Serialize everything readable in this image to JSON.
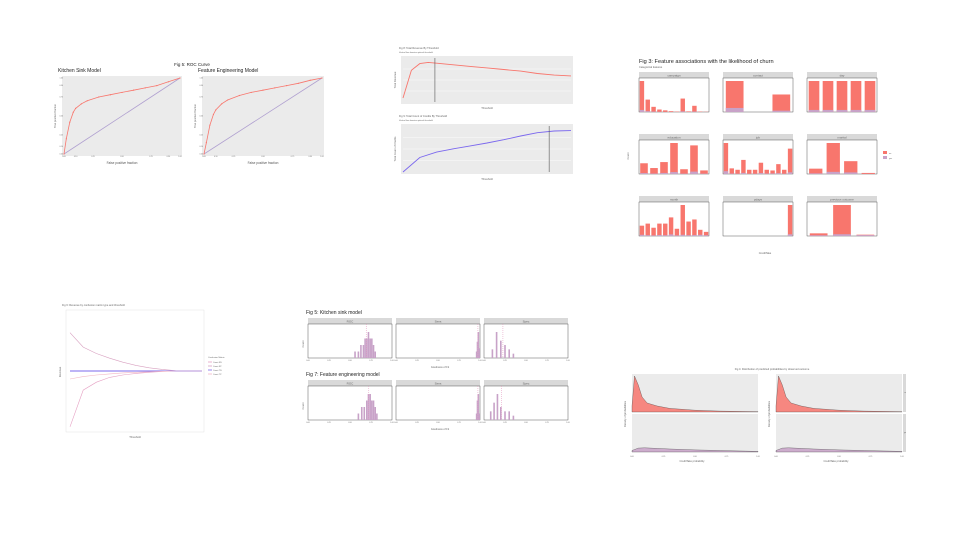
{
  "slide": {
    "background": "#ffffff"
  },
  "colors": {
    "salmon": "#f8766d",
    "lilac": "#c8a2c8",
    "purple": "#7b68ee",
    "pink": "#e6a1c4",
    "panel": "#ebebeb",
    "strip": "#d9d9d9",
    "diag": "#b0a0d0"
  },
  "fig5": {
    "title": "Fig 5: ROC Curve",
    "left_title": "Kitchen Sink Model",
    "right_title": "Feature Engineering Model",
    "xlabel": "False positive fraction",
    "ylabel": "True positive fraction",
    "xticks": [
      "0.00",
      "0.10",
      "0.25",
      "0.50",
      "0.75",
      "0.90",
      "1.00"
    ],
    "yticks": [
      "0.00",
      "0.10",
      "0.25",
      "0.50",
      "0.75",
      "0.90",
      "1.00"
    ]
  },
  "fig8": {
    "title": "Fig 8: Total Revenue By Threshold",
    "subtitle": "Vertical line denotes optimal threshold",
    "xlabel": "Threshold",
    "ylabel": "Total Revenue"
  },
  "fig9": {
    "title": "Fig 9: Total Count of Credits By Threshold",
    "subtitle": "Vertical line denotes optimal threshold",
    "xlabel": "Threshold",
    "ylabel": "Total Count of Credits"
  },
  "fig3": {
    "title": "Fig 3: Feature associations with the likelihood of churn",
    "subtitle": "Categorical features",
    "panels": [
      "campaign",
      "contact",
      "day",
      "education",
      "job",
      "marital",
      "month",
      "pdays",
      "previous outcome"
    ],
    "xlabel": "CreditTake",
    "ylabel": "Count",
    "legend": [
      "no",
      "yes"
    ]
  },
  "fig6": {
    "title": "Fig 6: Revenue by confusion matrix type and threshold",
    "xlabel": "Threshold",
    "ylabel": "Revenue",
    "legend_title": "Confusion Matrix",
    "legend": [
      "Count FN",
      "Count FP",
      "Count TN",
      "Count TP"
    ]
  },
  "fig5b": {
    "title": "Fig 5: Kitchen sink model",
    "strips": [
      "ROC",
      "Sens",
      "Spec"
    ],
    "xlabel": "Goodness of Fit",
    "ylabel": "Count",
    "xticks": [
      "0.00",
      "0.25",
      "0.50",
      "0.75",
      "1.00"
    ]
  },
  "fig7": {
    "title": "Fig 7: Feature engineering model",
    "strips": [
      "ROC",
      "Sens",
      "Spec"
    ],
    "xlabel": "Goodness of Fit",
    "ylabel": "Count",
    "xticks": [
      "0.00",
      "0.25",
      "0.50",
      "0.75",
      "1.00"
    ]
  },
  "fig4": {
    "title": "Fig 4: Distribution of predicted probabilities by observed outcome",
    "xlabel": "CreditTake probability",
    "ylabel": "Density of probabilities",
    "strips": [
      "no",
      "yes"
    ],
    "xticks": [
      "0.00",
      "0.25",
      "0.50",
      "0.75",
      "1.00"
    ]
  },
  "chart_data": [
    {
      "type": "line",
      "title": "Kitchen Sink Model",
      "xlabel": "False positive fraction",
      "ylabel": "True positive fraction",
      "xlim": [
        0,
        1
      ],
      "ylim": [
        0,
        1
      ],
      "series": [
        {
          "x": [
            0,
            0.02,
            0.05,
            0.08,
            0.1,
            0.15,
            0.2,
            0.3,
            0.4,
            0.5,
            0.6,
            0.7,
            0.8,
            0.9,
            1.0
          ],
          "values": [
            0,
            0.2,
            0.42,
            0.55,
            0.6,
            0.66,
            0.7,
            0.75,
            0.78,
            0.81,
            0.84,
            0.87,
            0.9,
            0.95,
            1.0
          ]
        }
      ]
    },
    {
      "type": "line",
      "title": "Feature Engineering Model",
      "xlabel": "False positive fraction",
      "ylabel": "True positive fraction",
      "xlim": [
        0,
        1
      ],
      "ylim": [
        0,
        1
      ],
      "series": [
        {
          "x": [
            0,
            0.02,
            0.05,
            0.08,
            0.1,
            0.15,
            0.2,
            0.3,
            0.4,
            0.5,
            0.6,
            0.7,
            0.8,
            0.9,
            1.0
          ],
          "values": [
            0,
            0.15,
            0.38,
            0.52,
            0.58,
            0.66,
            0.71,
            0.77,
            0.81,
            0.84,
            0.87,
            0.9,
            0.93,
            0.97,
            1.0
          ]
        }
      ]
    },
    {
      "type": "line",
      "title": "Fig 8: Total Revenue By Threshold",
      "xlim": [
        0,
        1
      ],
      "series": [
        {
          "x": [
            0,
            0.05,
            0.1,
            0.15,
            0.2,
            0.3,
            0.4,
            0.5,
            0.6,
            0.7,
            0.8,
            0.9,
            1.0
          ],
          "values": [
            0.1,
            0.8,
            0.97,
            1.0,
            0.98,
            0.94,
            0.9,
            0.86,
            0.82,
            0.78,
            0.72,
            0.68,
            0.66
          ]
        }
      ],
      "vline": 0.19
    },
    {
      "type": "line",
      "title": "Fig 9: Total Count of Credits By Threshold",
      "xlim": [
        0,
        1
      ],
      "series": [
        {
          "x": [
            0,
            0.1,
            0.2,
            0.3,
            0.4,
            0.5,
            0.6,
            0.7,
            0.8,
            0.9,
            1.0
          ],
          "values": [
            0.0,
            0.35,
            0.48,
            0.56,
            0.63,
            0.7,
            0.78,
            0.87,
            0.95,
            0.99,
            1.0
          ]
        }
      ],
      "vline": 0.87
    },
    {
      "type": "bar",
      "title": "Fig 3: Feature associations with the likelihood of churn",
      "ylabel": "Count",
      "xlabel": "CreditTake",
      "series": [
        {
          "name": "campaign",
          "no": [
            1500,
            600,
            250,
            120,
            80,
            40,
            20,
            650,
            30,
            300,
            20,
            10
          ],
          "yes": [
            100,
            40,
            20,
            10,
            5,
            3,
            2,
            30,
            2,
            20,
            2,
            1
          ]
        },
        {
          "name": "contact",
          "no": [
            2300,
            0,
            1300
          ],
          "yes": [
            300,
            0,
            100
          ]
        },
        {
          "name": "day",
          "no": [
            3000,
            3000,
            3000,
            3000,
            3000
          ],
          "yes": [
            200,
            200,
            200,
            200,
            200
          ]
        },
        {
          "name": "education",
          "no": [
            900,
            500,
            1000,
            2600,
            400,
            2400,
            300
          ],
          "yes": [
            80,
            40,
            90,
            160,
            30,
            200,
            30
          ]
        },
        {
          "name": "job",
          "no": [
            2200,
            400,
            300,
            1000,
            300,
            300,
            800,
            300,
            250,
            700,
            300,
            1800
          ],
          "yes": [
            200,
            30,
            20,
            80,
            20,
            20,
            70,
            30,
            40,
            60,
            20,
            120
          ]
        },
        {
          "name": "marital",
          "no": [
            500,
            2900,
            1200,
            100
          ],
          "yes": [
            60,
            200,
            150,
            10
          ]
        },
        {
          "name": "month",
          "no": [
            500,
            600,
            400,
            600,
            600,
            900,
            350,
            1500,
            700,
            800,
            300,
            200
          ],
          "yes": [
            60,
            40,
            30,
            50,
            40,
            80,
            30,
            60,
            40,
            50,
            60,
            40
          ]
        },
        {
          "name": "pdays",
          "no": [
            0,
            0,
            0,
            0,
            0,
            0,
            0,
            0,
            0,
            0,
            0,
            3600
          ],
          "yes": [
            0,
            0,
            0,
            0,
            0,
            0,
            0,
            0,
            0,
            0,
            0,
            200
          ]
        },
        {
          "name": "previous outcome",
          "no": [
            300,
            3500,
            150
          ],
          "yes": [
            80,
            200,
            100
          ]
        }
      ]
    },
    {
      "type": "line",
      "title": "Fig 6: Revenue by confusion matrix type and threshold",
      "xlim": [
        0,
        1
      ],
      "series": [
        {
          "name": "Count FN",
          "x": [
            0,
            0.1,
            0.2,
            0.3,
            0.4,
            0.5,
            0.6,
            0.7,
            0.8,
            1.0
          ],
          "values": [
            -3.5,
            -1.2,
            -0.7,
            -0.4,
            -0.25,
            -0.15,
            -0.08,
            -0.03,
            0,
            0
          ]
        },
        {
          "name": "Count FP",
          "x": [
            0,
            0.1,
            0.2,
            0.3,
            0.4,
            0.5,
            0.6,
            0.7,
            0.8,
            1.0
          ],
          "values": [
            2.4,
            1.5,
            1.1,
            0.8,
            0.55,
            0.35,
            0.2,
            0.1,
            0.02,
            0
          ]
        },
        {
          "name": "Count TN",
          "x": [
            0,
            1.0
          ],
          "values": [
            0,
            0
          ]
        },
        {
          "name": "Count TP",
          "x": [
            0,
            0.1,
            0.2,
            0.3,
            0.4,
            0.5,
            0.6,
            0.7,
            0.8,
            1.0
          ],
          "values": [
            -0.5,
            -0.35,
            -0.25,
            -0.18,
            -0.12,
            -0.08,
            -0.05,
            -0.02,
            0,
            0
          ]
        }
      ]
    },
    {
      "type": "bar",
      "title": "Fig 5: Kitchen sink model",
      "xlabel": "Goodness of Fit",
      "ylabel": "Count",
      "series": [
        {
          "name": "ROC",
          "x": [
            0.56,
            0.6,
            0.63,
            0.66,
            0.68,
            0.7,
            0.72,
            0.74,
            0.76,
            0.78,
            0.8
          ],
          "values": [
            1,
            1,
            2,
            2,
            3,
            3,
            4,
            3,
            3,
            2,
            1
          ]
        },
        {
          "name": "Sens",
          "x": [
            0.96,
            0.97,
            0.98,
            0.99
          ],
          "values": [
            2,
            5,
            8,
            3
          ]
        },
        {
          "name": "Spec",
          "x": [
            0.1,
            0.15,
            0.2,
            0.25,
            0.3,
            0.35
          ],
          "values": [
            2,
            6,
            4,
            3,
            2,
            1
          ]
        }
      ]
    },
    {
      "type": "bar",
      "title": "Fig 7: Feature engineering model",
      "xlabel": "Goodness of Fit",
      "ylabel": "Count",
      "series": [
        {
          "name": "ROC",
          "x": [
            0.6,
            0.64,
            0.67,
            0.7,
            0.72,
            0.74,
            0.76,
            0.78,
            0.8,
            0.82
          ],
          "values": [
            1,
            2,
            2,
            3,
            4,
            4,
            3,
            3,
            2,
            1
          ]
        },
        {
          "name": "Sens",
          "x": [
            0.96,
            0.97,
            0.98,
            0.99
          ],
          "values": [
            2,
            6,
            8,
            2
          ]
        },
        {
          "name": "Spec",
          "x": [
            0.08,
            0.12,
            0.16,
            0.2,
            0.25,
            0.3,
            0.35
          ],
          "values": [
            2,
            4,
            6,
            3,
            2,
            2,
            1
          ]
        }
      ]
    },
    {
      "type": "area",
      "title": "Fig 4: Distribution of predicted probabilities by observed outcome",
      "xlabel": "CreditTake probability",
      "ylabel": "Density of probabilities",
      "xlim": [
        0,
        1
      ],
      "series": [
        {
          "name": "no",
          "x": [
            0,
            0.02,
            0.05,
            0.08,
            0.12,
            0.2,
            0.3,
            0.5,
            0.7,
            1.0
          ],
          "values": [
            2,
            12,
            9,
            5,
            3,
            2,
            1.2,
            0.6,
            0.3,
            0.1
          ]
        },
        {
          "name": "yes",
          "x": [
            0,
            0.05,
            0.1,
            0.2,
            0.3,
            0.5,
            0.7,
            0.9,
            1.0
          ],
          "values": [
            0.5,
            1.3,
            1.4,
            1.2,
            1.0,
            0.7,
            0.5,
            0.3,
            0.2
          ]
        }
      ]
    }
  ]
}
